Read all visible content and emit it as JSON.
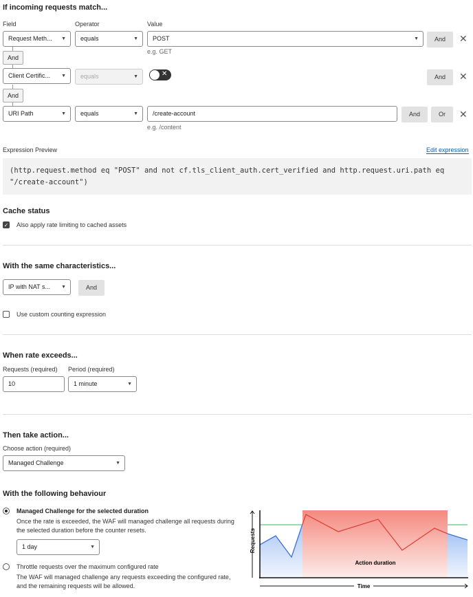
{
  "match": {
    "title": "If incoming requests match...",
    "col_field": "Field",
    "col_operator": "Operator",
    "col_value": "Value",
    "rows": [
      {
        "field": "Request Meth...",
        "operator": "equals",
        "value": "POST",
        "hint": "e.g. GET",
        "and": "And",
        "remove": "✕"
      },
      {
        "field": "Client Certific...",
        "operator": "equals",
        "toggle": false,
        "and": "And",
        "remove": "✕"
      },
      {
        "field": "URI Path",
        "operator": "equals",
        "value": "/create-account",
        "hint": "e.g. /content",
        "and": "And",
        "or": "Or",
        "remove": "✕"
      }
    ],
    "connector": "And"
  },
  "expression": {
    "label": "Expression Preview",
    "edit_link": "Edit expression",
    "text": "(http.request.method eq \"POST\" and not cf.tls_client_auth.cert_verified and http.request.uri.path eq \"/create-account\")"
  },
  "cache": {
    "title": "Cache status",
    "checkbox_label": "Also apply rate limiting to cached assets",
    "checked": true
  },
  "characteristics": {
    "title": "With the same characteristics...",
    "select": "IP with NAT s...",
    "and": "And",
    "custom_label": "Use custom counting expression",
    "custom_checked": false
  },
  "rate": {
    "title": "When rate exceeds...",
    "requests_label": "Requests (required)",
    "requests_value": "10",
    "period_label": "Period (required)",
    "period_value": "1 minute"
  },
  "action": {
    "title": "Then take action...",
    "choose_label": "Choose action (required)",
    "value": "Managed Challenge"
  },
  "behaviour": {
    "title": "With the following behaviour",
    "option1_title": "Managed Challenge for the selected duration",
    "option1_desc": "Once the rate is exceeded, the WAF will managed challenge all requests during the selected duration before the counter resets.",
    "duration": "1 day",
    "option2_title": "Throttle requests over the maximum configured rate",
    "option2_desc": "The WAF will managed challenge any requests exceeding the configured rate, and the remaining requests will be allowed.",
    "selected": 1
  },
  "illustration": {
    "y_label": "Requests",
    "x_label": "Time",
    "area_label": "Action duration",
    "colors": {
      "threshold": "#5bc97a",
      "requests": "#3b6fd8",
      "action": "#f2776b"
    }
  }
}
